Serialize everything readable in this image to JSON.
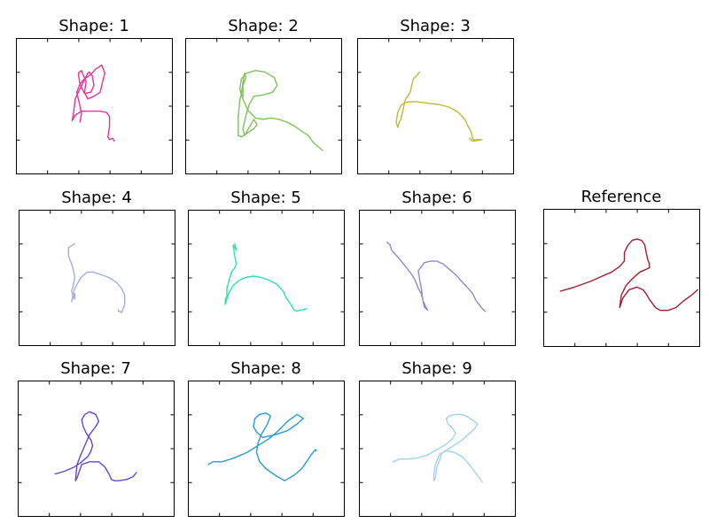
{
  "chart_data": [
    {
      "type": "line",
      "title": "Shape: 1",
      "color": "#e8329b",
      "xlim": [
        0,
        1
      ],
      "ylim": [
        0,
        1
      ],
      "series": [
        {
          "x": [
            0.41,
            0.42,
            0.41,
            0.4,
            0.39,
            0.41,
            0.44,
            0.48,
            0.51,
            0.55,
            0.57,
            0.56,
            0.55,
            0.54,
            0.5,
            0.46,
            0.44,
            0.45,
            0.43,
            0.42,
            0.4,
            0.41,
            0.44,
            0.48,
            0.5,
            0.49,
            0.47,
            0.46,
            0.43,
            0.4,
            0.38,
            0.37,
            0.36,
            0.38,
            0.42,
            0.48,
            0.54,
            0.58,
            0.6,
            0.6,
            0.59,
            0.6,
            0.62,
            0.63
          ],
          "y": [
            0.38,
            0.44,
            0.5,
            0.55,
            0.6,
            0.66,
            0.7,
            0.73,
            0.77,
            0.8,
            0.74,
            0.7,
            0.65,
            0.6,
            0.57,
            0.55,
            0.6,
            0.68,
            0.73,
            0.76,
            0.74,
            0.66,
            0.59,
            0.6,
            0.65,
            0.72,
            0.75,
            0.74,
            0.67,
            0.6,
            0.55,
            0.45,
            0.39,
            0.43,
            0.46,
            0.46,
            0.46,
            0.45,
            0.42,
            0.35,
            0.27,
            0.25,
            0.26,
            0.24
          ]
        }
      ]
    },
    {
      "type": "line",
      "title": "Shape: 2",
      "color": "#7dc35a",
      "xlim": [
        0,
        1
      ],
      "ylim": [
        0,
        1
      ],
      "series": [
        {
          "x": [
            0.37,
            0.37,
            0.39,
            0.38,
            0.37,
            0.36,
            0.35,
            0.34,
            0.34,
            0.36,
            0.4,
            0.44,
            0.46,
            0.44,
            0.41,
            0.38,
            0.37,
            0.39,
            0.41,
            0.44,
            0.5,
            0.56,
            0.59,
            0.57,
            0.51,
            0.45,
            0.39,
            0.36,
            0.35,
            0.37,
            0.4,
            0.45,
            0.5,
            0.55,
            0.6,
            0.65,
            0.7,
            0.75,
            0.79,
            0.82,
            0.84,
            0.86,
            0.88
          ],
          "y": [
            0.56,
            0.65,
            0.71,
            0.74,
            0.67,
            0.59,
            0.54,
            0.42,
            0.28,
            0.27,
            0.3,
            0.33,
            0.36,
            0.4,
            0.34,
            0.28,
            0.33,
            0.43,
            0.51,
            0.57,
            0.58,
            0.6,
            0.65,
            0.71,
            0.75,
            0.76,
            0.74,
            0.7,
            0.62,
            0.55,
            0.47,
            0.41,
            0.4,
            0.41,
            0.4,
            0.38,
            0.35,
            0.31,
            0.28,
            0.23,
            0.21,
            0.19,
            0.17
          ]
        }
      ]
    },
    {
      "type": "line",
      "title": "Shape: 3",
      "color": "#c0b93c",
      "xlim": [
        0,
        1
      ],
      "ylim": [
        0,
        1
      ],
      "series": [
        {
          "x": [
            0.4,
            0.38,
            0.36,
            0.35,
            0.34,
            0.33,
            0.31,
            0.3,
            0.29,
            0.28,
            0.27,
            0.26,
            0.25,
            0.26,
            0.28,
            0.3,
            0.33,
            0.38,
            0.45,
            0.52,
            0.59,
            0.65,
            0.69,
            0.71,
            0.73,
            0.74,
            0.75,
            0.75,
            0.77,
            0.8,
            0.75,
            0.74,
            0.72
          ],
          "y": [
            0.75,
            0.72,
            0.7,
            0.65,
            0.6,
            0.58,
            0.55,
            0.5,
            0.45,
            0.4,
            0.38,
            0.34,
            0.38,
            0.45,
            0.5,
            0.52,
            0.53,
            0.53,
            0.52,
            0.51,
            0.49,
            0.45,
            0.4,
            0.35,
            0.31,
            0.26,
            0.24,
            0.25,
            0.25,
            0.25,
            0.24,
            0.24,
            0.26
          ]
        }
      ]
    },
    {
      "type": "line",
      "title": "Shape: 4",
      "color": "#a2aee6",
      "xlim": [
        0,
        1
      ],
      "ylim": [
        0,
        1
      ],
      "series": [
        {
          "x": [
            0.36,
            0.32,
            0.32,
            0.34,
            0.35,
            0.36,
            0.35,
            0.34,
            0.35,
            0.36,
            0.36,
            0.35,
            0.34,
            0.35,
            0.36,
            0.4,
            0.44,
            0.48,
            0.53,
            0.58,
            0.63,
            0.66,
            0.68,
            0.68,
            0.67,
            0.66,
            0.65,
            0.64,
            0.64
          ],
          "y": [
            0.75,
            0.72,
            0.66,
            0.6,
            0.56,
            0.5,
            0.44,
            0.4,
            0.36,
            0.34,
            0.38,
            0.36,
            0.32,
            0.38,
            0.42,
            0.5,
            0.54,
            0.54,
            0.52,
            0.5,
            0.46,
            0.42,
            0.37,
            0.3,
            0.27,
            0.24,
            0.25,
            0.25,
            0.26
          ]
        }
      ]
    },
    {
      "type": "line",
      "title": "Shape: 5",
      "color": "#2de3a6",
      "xlim": [
        0,
        1
      ],
      "ylim": [
        0,
        1
      ],
      "series": [
        {
          "x": [
            0.3,
            0.31,
            0.29,
            0.3,
            0.31,
            0.3,
            0.28,
            0.27,
            0.26,
            0.25,
            0.25,
            0.24,
            0.24,
            0.26,
            0.29,
            0.33,
            0.37,
            0.42,
            0.47,
            0.52,
            0.57,
            0.61,
            0.63,
            0.66,
            0.68,
            0.7,
            0.72,
            0.74,
            0.76
          ],
          "y": [
            0.75,
            0.7,
            0.74,
            0.66,
            0.6,
            0.57,
            0.54,
            0.5,
            0.46,
            0.42,
            0.36,
            0.34,
            0.3,
            0.38,
            0.44,
            0.48,
            0.5,
            0.51,
            0.5,
            0.48,
            0.45,
            0.4,
            0.35,
            0.3,
            0.26,
            0.25,
            0.26,
            0.26,
            0.27
          ]
        }
      ]
    },
    {
      "type": "line",
      "title": "Shape: 6",
      "color": "#8b8ccc",
      "xlim": [
        0,
        1
      ],
      "ylim": [
        0,
        1
      ],
      "series": [
        {
          "x": [
            0.18,
            0.2,
            0.21,
            0.25,
            0.3,
            0.34,
            0.36,
            0.38,
            0.4,
            0.41,
            0.42,
            0.44,
            0.43,
            0.41,
            0.4,
            0.39,
            0.38,
            0.42,
            0.46,
            0.5,
            0.54,
            0.58,
            0.62,
            0.66,
            0.7,
            0.73,
            0.75,
            0.77,
            0.79,
            0.81
          ],
          "y": [
            0.76,
            0.74,
            0.7,
            0.65,
            0.58,
            0.52,
            0.48,
            0.42,
            0.38,
            0.33,
            0.28,
            0.26,
            0.28,
            0.33,
            0.42,
            0.48,
            0.55,
            0.61,
            0.62,
            0.62,
            0.6,
            0.56,
            0.52,
            0.47,
            0.42,
            0.38,
            0.33,
            0.3,
            0.27,
            0.25
          ]
        }
      ]
    },
    {
      "type": "line",
      "title": "Reference",
      "color": "#a21d2f",
      "xlim": [
        0,
        1
      ],
      "ylim": [
        0,
        1
      ],
      "series": [
        {
          "x": [
            0.11,
            0.2,
            0.3,
            0.38,
            0.44,
            0.49,
            0.52,
            0.52,
            0.54,
            0.57,
            0.6,
            0.63,
            0.65,
            0.66,
            0.67,
            0.68,
            0.68,
            0.66,
            0.62,
            0.57,
            0.53,
            0.5,
            0.49,
            0.51,
            0.55,
            0.6,
            0.64,
            0.66,
            0.68,
            0.7,
            0.72,
            0.75,
            0.8,
            0.85,
            0.9,
            0.95,
            0.99
          ],
          "y": [
            0.4,
            0.43,
            0.47,
            0.51,
            0.54,
            0.58,
            0.62,
            0.68,
            0.73,
            0.77,
            0.78,
            0.77,
            0.74,
            0.68,
            0.63,
            0.6,
            0.57,
            0.56,
            0.54,
            0.49,
            0.44,
            0.37,
            0.28,
            0.35,
            0.41,
            0.43,
            0.41,
            0.38,
            0.34,
            0.31,
            0.28,
            0.26,
            0.26,
            0.28,
            0.33,
            0.37,
            0.41
          ]
        }
      ]
    },
    {
      "type": "line",
      "title": "Shape: 7",
      "color": "#6447cf",
      "xlim": [
        0,
        1
      ],
      "ylim": [
        0,
        1
      ],
      "series": [
        {
          "x": [
            0.24,
            0.3,
            0.36,
            0.4,
            0.42,
            0.45,
            0.47,
            0.48,
            0.47,
            0.44,
            0.42,
            0.41,
            0.43,
            0.46,
            0.5,
            0.52,
            0.5,
            0.46,
            0.43,
            0.4,
            0.38,
            0.37,
            0.38,
            0.41,
            0.46,
            0.52,
            0.56,
            0.59,
            0.6,
            0.62,
            0.65,
            0.7,
            0.74,
            0.76
          ],
          "y": [
            0.31,
            0.33,
            0.36,
            0.39,
            0.41,
            0.44,
            0.48,
            0.52,
            0.56,
            0.61,
            0.66,
            0.71,
            0.75,
            0.77,
            0.75,
            0.7,
            0.66,
            0.6,
            0.52,
            0.44,
            0.38,
            0.26,
            0.28,
            0.38,
            0.4,
            0.4,
            0.36,
            0.3,
            0.27,
            0.26,
            0.26,
            0.27,
            0.29,
            0.32
          ]
        }
      ]
    },
    {
      "type": "line",
      "title": "Shape: 8",
      "color": "#2a9ad4",
      "xlim": [
        0,
        1
      ],
      "ylim": [
        0,
        1
      ],
      "series": [
        {
          "x": [
            0.13,
            0.16,
            0.22,
            0.3,
            0.38,
            0.45,
            0.52,
            0.58,
            0.64,
            0.7,
            0.74,
            0.7,
            0.64,
            0.56,
            0.48,
            0.44,
            0.42,
            0.43,
            0.46,
            0.5,
            0.53,
            0.51,
            0.47,
            0.45,
            0.44,
            0.46,
            0.5,
            0.56,
            0.62,
            0.68,
            0.73,
            0.76,
            0.79,
            0.81,
            0.82,
            0.82
          ],
          "y": [
            0.38,
            0.4,
            0.4,
            0.43,
            0.47,
            0.52,
            0.57,
            0.63,
            0.7,
            0.75,
            0.72,
            0.68,
            0.63,
            0.6,
            0.58,
            0.62,
            0.66,
            0.72,
            0.75,
            0.76,
            0.74,
            0.68,
            0.6,
            0.54,
            0.47,
            0.4,
            0.35,
            0.3,
            0.26,
            0.3,
            0.35,
            0.4,
            0.45,
            0.48,
            0.49,
            0.48
          ]
        }
      ]
    },
    {
      "type": "line",
      "title": "Shape: 9",
      "color": "#a5d2ef",
      "xlim": [
        0,
        1
      ],
      "ylim": [
        0,
        1
      ],
      "series": [
        {
          "x": [
            0.22,
            0.26,
            0.32,
            0.38,
            0.44,
            0.5,
            0.56,
            0.6,
            0.62,
            0.6,
            0.57,
            0.56,
            0.58,
            0.62,
            0.66,
            0.7,
            0.74,
            0.76,
            0.74,
            0.7,
            0.66,
            0.62,
            0.58,
            0.55,
            0.53,
            0.52,
            0.5,
            0.49,
            0.48,
            0.48,
            0.49,
            0.52,
            0.56,
            0.61,
            0.66,
            0.7,
            0.74,
            0.78,
            0.79
          ],
          "y": [
            0.4,
            0.42,
            0.42,
            0.43,
            0.45,
            0.49,
            0.53,
            0.57,
            0.61,
            0.65,
            0.68,
            0.72,
            0.74,
            0.75,
            0.75,
            0.73,
            0.7,
            0.68,
            0.64,
            0.6,
            0.56,
            0.53,
            0.5,
            0.48,
            0.46,
            0.42,
            0.36,
            0.28,
            0.26,
            0.3,
            0.38,
            0.46,
            0.48,
            0.47,
            0.44,
            0.39,
            0.33,
            0.27,
            0.25
          ]
        }
      ]
    }
  ]
}
